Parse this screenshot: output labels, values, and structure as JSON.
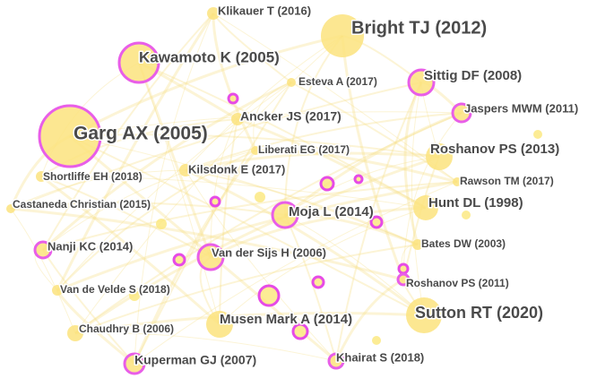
{
  "nodes": [
    {
      "label": "Klikauer T (2016)"
    },
    {
      "label": "Bright TJ (2012)"
    },
    {
      "label": "Kawamoto K (2005)"
    },
    {
      "label": "Sittig DF (2008)"
    },
    {
      "label": "Esteva A (2017)"
    },
    {
      "label": "Jaspers MWM (2011)"
    },
    {
      "label": "Ancker JS (2017)"
    },
    {
      "label": "Garg AX (2005)"
    },
    {
      "label": "Liberati EG (2017)"
    },
    {
      "label": "Roshanov PS (2013)"
    },
    {
      "label": "Shortliffe EH (2018)"
    },
    {
      "label": "Kilsdonk E (2017)"
    },
    {
      "label": "Rawson TM (2017)"
    },
    {
      "label": "Castaneda Christian (2015)"
    },
    {
      "label": "Hunt DL (1998)"
    },
    {
      "label": "Moja L (2014)"
    },
    {
      "label": "Nanji KC (2014)"
    },
    {
      "label": "Bates DW (2003)"
    },
    {
      "label": "Van der Sijs H (2006)"
    },
    {
      "label": "Roshanov PS (2011)"
    },
    {
      "label": "Van de Velde S (2018)"
    },
    {
      "label": "Sutton RT (2020)"
    },
    {
      "label": "Musen Mark A (2014)"
    },
    {
      "label": "Chaudhry B (2006)"
    },
    {
      "label": "Kuperman GJ (2007)"
    },
    {
      "label": "Khairat S (2018)"
    }
  ]
}
